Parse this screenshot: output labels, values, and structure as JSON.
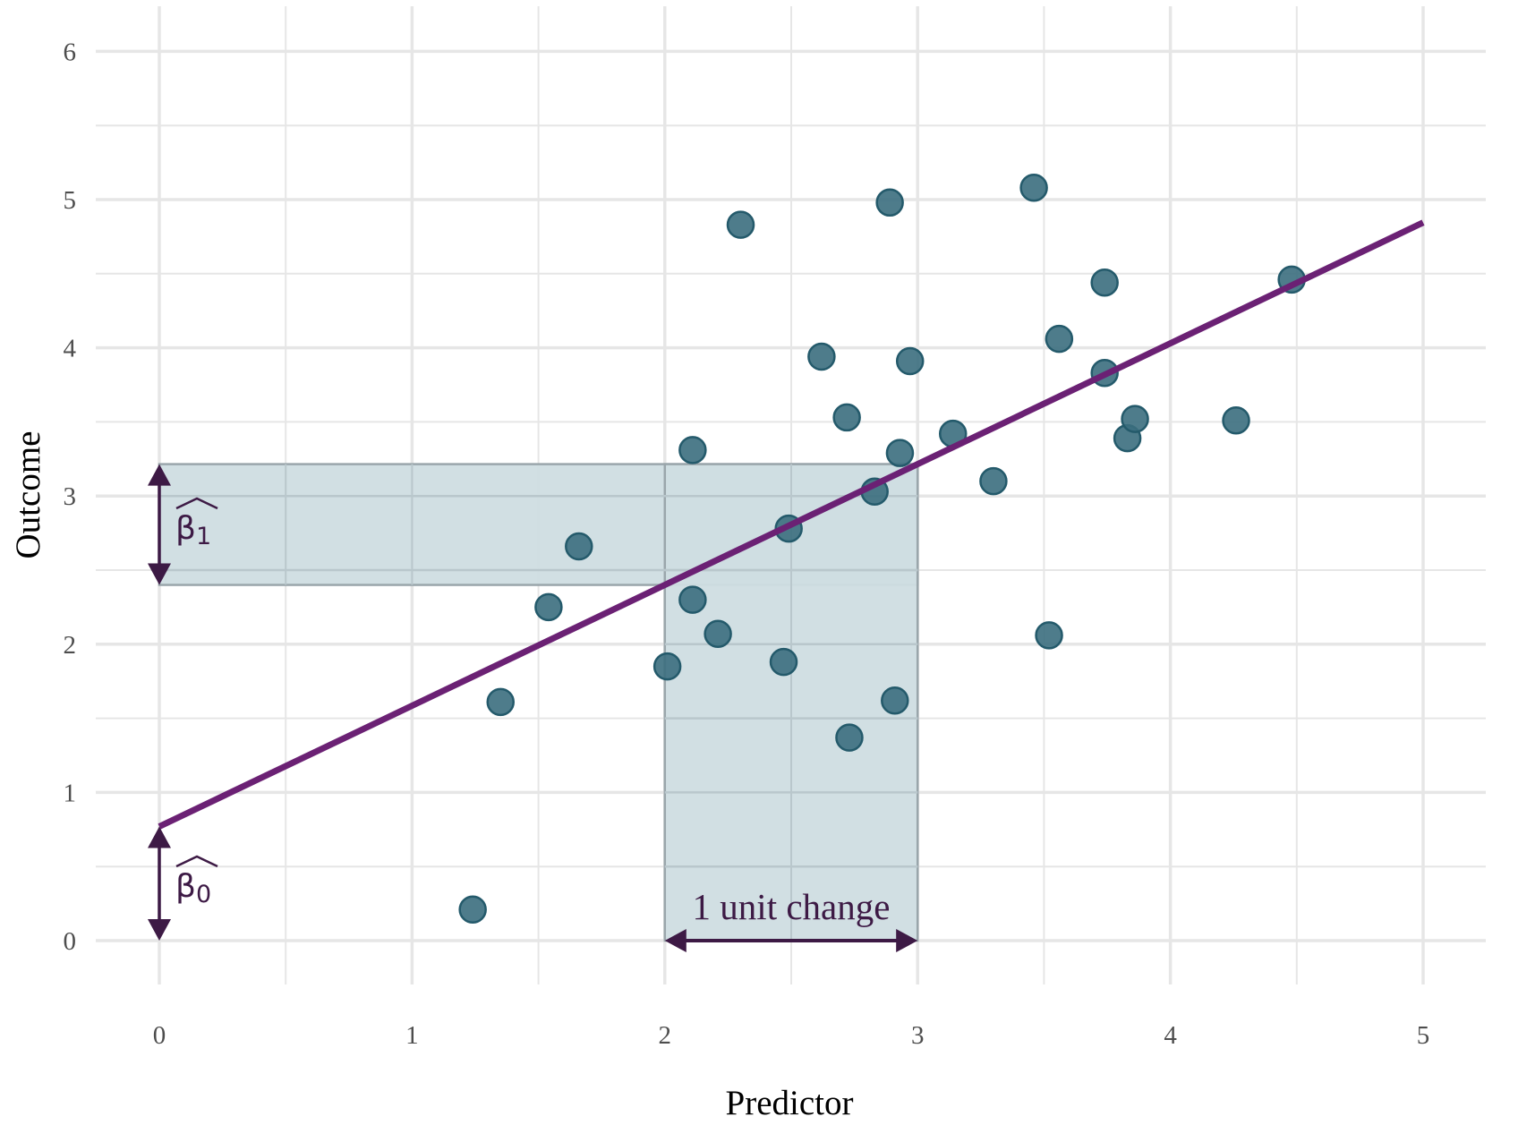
{
  "chart_data": {
    "type": "scatter",
    "title": "",
    "xlabel": "Predictor",
    "ylabel": "Outcome",
    "xlim": [
      -0.27,
      5.25
    ],
    "ylim": [
      -0.3,
      6.3
    ],
    "x_ticks": [
      0,
      1,
      2,
      3,
      4,
      5
    ],
    "y_ticks": [
      0,
      1,
      2,
      3,
      4,
      5,
      6
    ],
    "x_tick_labels": [
      "0",
      "1",
      "2",
      "3",
      "4",
      "5"
    ],
    "y_tick_labels": [
      "0",
      "1",
      "2",
      "3",
      "4",
      "5",
      "6"
    ],
    "grid": true,
    "legend": "none",
    "points": [
      {
        "x": 1.24,
        "y": 0.21
      },
      {
        "x": 1.35,
        "y": 1.61
      },
      {
        "x": 1.54,
        "y": 2.25
      },
      {
        "x": 1.66,
        "y": 2.66
      },
      {
        "x": 2.01,
        "y": 1.85
      },
      {
        "x": 2.11,
        "y": 2.3
      },
      {
        "x": 2.11,
        "y": 3.31
      },
      {
        "x": 2.21,
        "y": 2.07
      },
      {
        "x": 2.3,
        "y": 4.83
      },
      {
        "x": 2.47,
        "y": 1.88
      },
      {
        "x": 2.49,
        "y": 2.78
      },
      {
        "x": 2.62,
        "y": 3.94
      },
      {
        "x": 2.72,
        "y": 3.53
      },
      {
        "x": 2.73,
        "y": 1.37
      },
      {
        "x": 2.83,
        "y": 3.03
      },
      {
        "x": 2.89,
        "y": 4.98
      },
      {
        "x": 2.91,
        "y": 1.62
      },
      {
        "x": 2.93,
        "y": 3.29
      },
      {
        "x": 2.97,
        "y": 3.91
      },
      {
        "x": 3.14,
        "y": 3.42
      },
      {
        "x": 3.3,
        "y": 3.1
      },
      {
        "x": 3.46,
        "y": 5.08
      },
      {
        "x": 3.52,
        "y": 2.06
      },
      {
        "x": 3.56,
        "y": 4.06
      },
      {
        "x": 3.74,
        "y": 4.44
      },
      {
        "x": 3.74,
        "y": 3.83
      },
      {
        "x": 3.83,
        "y": 3.39
      },
      {
        "x": 3.86,
        "y": 3.52
      },
      {
        "x": 4.26,
        "y": 3.51
      },
      {
        "x": 4.48,
        "y": 4.46
      }
    ],
    "regression_line": {
      "intercept": 0.77,
      "slope": 0.815,
      "x_range": [
        0,
        5
      ]
    },
    "annotations": {
      "unit_change_label": "1 unit change",
      "unit_change_x": [
        2,
        3
      ],
      "beta0_label": "β",
      "beta0_sub": "0",
      "beta1_label": "β",
      "beta1_sub": "1"
    }
  },
  "colors": {
    "point_fill": "#3b6e7e",
    "point_stroke": "#245a6b",
    "line": "#6b2174",
    "annotation": "#3d1a45",
    "band_fill": "#cfdde2",
    "band_stroke": "#9aa6ab",
    "grid": "#e6e6e6"
  }
}
